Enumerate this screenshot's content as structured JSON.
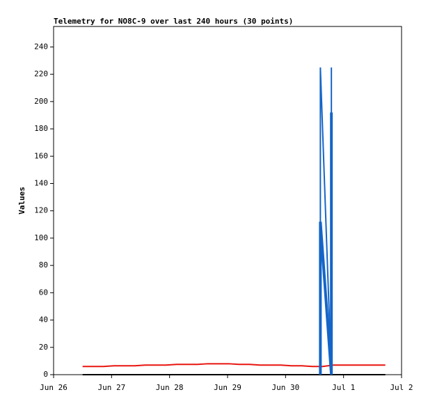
{
  "chart_data": {
    "type": "line",
    "title": "Telemetry for NO8C-9 over last 240 hours (30 points)",
    "ylabel": "Values",
    "xlim": [
      0,
      6
    ],
    "xticks": [
      {
        "value": 0,
        "label": "Jun 26"
      },
      {
        "value": 1,
        "label": "Jun 27"
      },
      {
        "value": 2,
        "label": "Jun 28"
      },
      {
        "value": 3,
        "label": "Jun 29"
      },
      {
        "value": 4,
        "label": "Jun 30"
      },
      {
        "value": 5,
        "label": "Jul 1"
      },
      {
        "value": 6,
        "label": "Jul 2"
      }
    ],
    "ylim": [
      0,
      255
    ],
    "yticks": [
      0,
      20,
      40,
      60,
      80,
      100,
      120,
      140,
      160,
      180,
      200,
      220,
      240
    ],
    "grid": false,
    "series": [
      {
        "color": "#e8140e",
        "width": 2,
        "x": [
          0.5,
          0.68,
          0.86,
          1.04,
          1.22,
          1.4,
          1.58,
          1.76,
          1.94,
          2.12,
          2.3,
          2.48,
          2.66,
          2.84,
          3.02,
          3.2,
          3.38,
          3.56,
          3.74,
          3.92,
          4.1,
          4.28,
          4.46,
          4.64,
          4.82,
          5.0,
          5.18,
          5.36,
          5.54,
          5.72
        ],
        "values": [
          6,
          6,
          6,
          6.5,
          6.5,
          6.5,
          7,
          7,
          7,
          7.5,
          7.5,
          7.5,
          8,
          8,
          8,
          7.5,
          7.5,
          7,
          7,
          7,
          6.5,
          6.5,
          6,
          6,
          7,
          7,
          7,
          7,
          7,
          7
        ]
      },
      {
        "color": "#000000",
        "width": 2,
        "x": [
          0.5,
          0.68,
          0.86,
          1.04,
          1.22,
          1.4,
          1.58,
          1.76,
          1.94,
          2.12,
          2.3,
          2.48,
          2.66,
          2.84,
          3.02,
          3.2,
          3.38,
          3.56,
          3.74,
          3.92,
          4.1,
          4.28,
          4.46,
          4.64,
          4.82,
          5.0,
          5.18,
          5.36,
          5.54,
          5.72
        ],
        "values": [
          0,
          0,
          0,
          0,
          0,
          0,
          0,
          0,
          0,
          0,
          0,
          0,
          0,
          0,
          0,
          0,
          0,
          0,
          0,
          0,
          0,
          0,
          0,
          0,
          0,
          0,
          0,
          0,
          0,
          0
        ]
      },
      {
        "color": "#1565c8",
        "width": 2,
        "x": [
          4.6,
          4.6,
          4.79,
          4.79
        ],
        "values": [
          0,
          225,
          0,
          225
        ]
      },
      {
        "color": "#1565c8",
        "width": 4,
        "x": [
          4.6,
          4.6,
          4.79,
          4.79
        ],
        "values": [
          0,
          112,
          0,
          192
        ]
      }
    ]
  }
}
